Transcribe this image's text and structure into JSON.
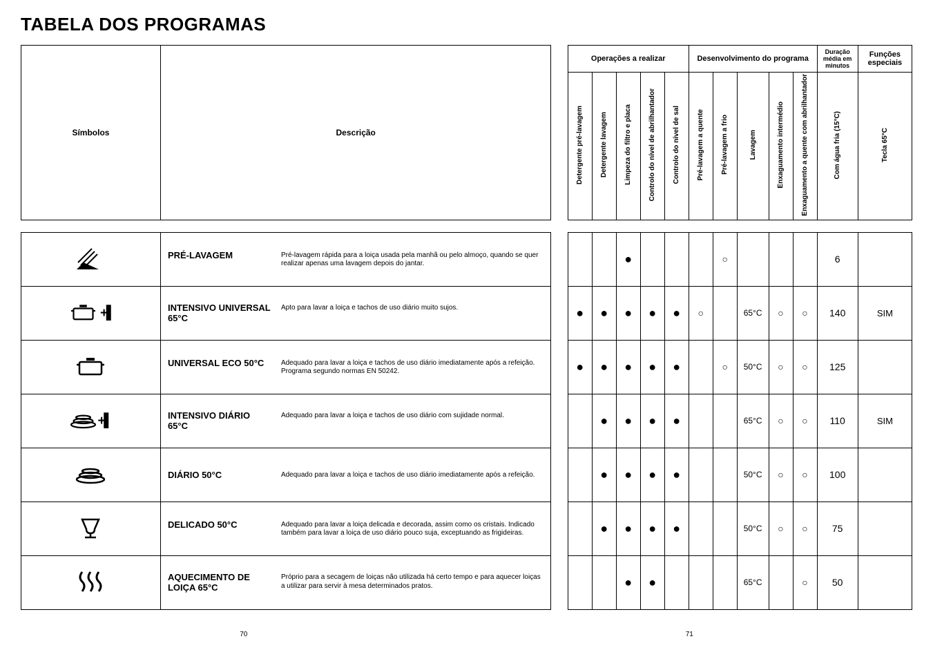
{
  "title": "TABELA DOS PROGRAMAS",
  "header": {
    "symbols": "Símbolos",
    "description": "Descrição",
    "group_ops": "Operações a realizar",
    "group_dev": "Desenvolvimento do programa",
    "group_dur": "Duração média em minutos",
    "group_func": "Funções especiais",
    "cols": {
      "c1": "Detergente pré-lavagem",
      "c2": "Detergente lavagem",
      "c3": "Limpeza do filtro e placa",
      "c4": "Controlo do nível de abrilhantador",
      "c5": "Controlo do nível de sal",
      "c6": "Pré-lavagem a quente",
      "c7": "Pré-lavagem a frio",
      "c8": "Lavagem",
      "c9": "Enxaguamento intermédio",
      "c10": "Enxaguamento a quente com abrilhantador",
      "c11": "Com água fria (15°C)",
      "c12": "Tecla 65°C"
    }
  },
  "rows": [
    {
      "icon": "spray",
      "name": "PRÉ-LAVAGEM",
      "desc": "Pré-lavagem rápida para a loiça usada pela manhã ou pelo almoço, quando se quer realizar apenas uma lavagem depois do jantar.",
      "cells": [
        "",
        "",
        "●",
        "",
        "",
        "",
        "○",
        "",
        "",
        "",
        "6",
        ""
      ]
    },
    {
      "icon": "pot-plus",
      "name": "INTENSIVO UNIVERSAL 65°C",
      "desc": "Apto para lavar a loiça e tachos de uso diário muito sujos.",
      "cells": [
        "●",
        "●",
        "●",
        "●",
        "●",
        "○",
        "",
        "65°C",
        "○",
        "○",
        "140",
        "SIM"
      ]
    },
    {
      "icon": "pot",
      "name": "UNIVERSAL ECO 50°C",
      "desc": "Adequado para lavar a loiça e tachos de uso diário imediatamente após a refeição. Programa segundo normas EN 50242.",
      "cells": [
        "●",
        "●",
        "●",
        "●",
        "●",
        "",
        "○",
        "50°C",
        "○",
        "○",
        "125",
        ""
      ]
    },
    {
      "icon": "plates-plus",
      "name": "INTENSIVO DIÁRIO 65°C",
      "desc": "Adequado para lavar a loiça e tachos de uso diário com sujidade normal.",
      "cells": [
        "",
        "●",
        "●",
        "●",
        "●",
        "",
        "",
        "65°C",
        "○",
        "○",
        "110",
        "SIM"
      ]
    },
    {
      "icon": "plates",
      "name": "DIÁRIO 50°C",
      "desc": "Adequado para lavar a loiça e tachos de uso diário imediatamente após a refeição.",
      "cells": [
        "",
        "●",
        "●",
        "●",
        "●",
        "",
        "",
        "50°C",
        "○",
        "○",
        "100",
        ""
      ]
    },
    {
      "icon": "glass",
      "name": "DELICADO 50°C",
      "desc": "Adequado para lavar a loiça delicada e decorada, assim como os cristais. Indicado também para lavar a loiça de uso diário pouco suja, exceptuando as frigideiras.",
      "cells": [
        "",
        "●",
        "●",
        "●",
        "●",
        "",
        "",
        "50°C",
        "○",
        "○",
        "75",
        ""
      ]
    },
    {
      "icon": "heat",
      "name": "AQUECIMENTO DE LOIÇA 65°C",
      "desc": "Próprio para a secagem de loiças não utilizada há certo tempo e para aquecer loiças a utilizar para servir à mesa determinados pratos.",
      "cells": [
        "",
        "",
        "●",
        "●",
        "",
        "",
        "",
        "65°C",
        "",
        "○",
        "50",
        ""
      ]
    }
  ],
  "page_left": "70",
  "page_right": "71",
  "style": {
    "dot_color": "#000000",
    "circle_color": "#000000",
    "border_color": "#000000",
    "col_widths": {
      "sym": 150,
      "desc": 420,
      "narrow": 26,
      "dur": 44,
      "func": 58
    }
  }
}
